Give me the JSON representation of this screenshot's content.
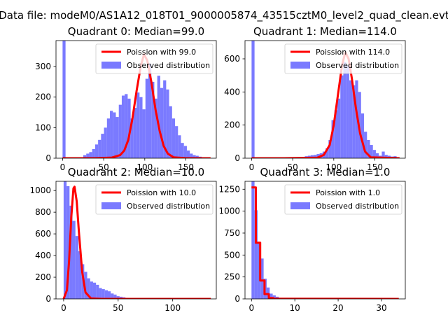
{
  "suptitle": "Data file: modeM0/AS1A12_018T01_9000005874_43515cztM0_level2_quad_clean.evt",
  "colors": {
    "hist": "#7a7aff",
    "poisson": "#ff0000"
  },
  "chart_data": [
    {
      "type": "bar+line",
      "title": "Quadrant 0: Median=99.0",
      "xlim": [
        -8,
        187
      ],
      "ylim": [
        0,
        385
      ],
      "xticks": [
        0,
        50,
        100,
        150
      ],
      "yticks": [
        0,
        100,
        200,
        300
      ],
      "legend": {
        "position": "top-right",
        "line_label": "Poission with 99.0",
        "hist_label": "Observed distribution"
      },
      "hist": {
        "bin_width": 3.6,
        "edges_start": 0,
        "counts": [
          385,
          0,
          0,
          0,
          0,
          0,
          0,
          10,
          15,
          20,
          30,
          45,
          60,
          80,
          100,
          130,
          155,
          150,
          135,
          175,
          205,
          210,
          195,
          130,
          165,
          215,
          200,
          160,
          260,
          310,
          250,
          195,
          270,
          230,
          255,
          225,
          170,
          130,
          105,
          75,
          50,
          40,
          25,
          15,
          10,
          8,
          5,
          3,
          2,
          1
        ]
      },
      "poisson": {
        "x": [
          0,
          20,
          40,
          60,
          70,
          75,
          80,
          85,
          90,
          95,
          99,
          103,
          108,
          113,
          118,
          123,
          128,
          135,
          150,
          180
        ],
        "y": [
          0,
          0,
          0,
          2,
          10,
          25,
          60,
          130,
          220,
          300,
          340,
          320,
          250,
          160,
          90,
          40,
          15,
          3,
          0,
          0
        ]
      }
    },
    {
      "type": "bar+line",
      "title": "Quadrant 1: Median=114.0",
      "xlim": [
        -8,
        187
      ],
      "ylim": [
        0,
        710
      ],
      "xticks": [
        0,
        50,
        100,
        150
      ],
      "yticks": [
        0,
        200,
        400,
        600
      ],
      "legend": {
        "position": "top-right",
        "line_label": "Poission with 114.0",
        "hist_label": "Observed distribution"
      },
      "hist": {
        "bin_width": 3.6,
        "edges_start": 0,
        "counts": [
          710,
          0,
          0,
          0,
          0,
          0,
          0,
          0,
          0,
          0,
          0,
          0,
          0,
          0,
          0,
          0,
          0,
          8,
          12,
          15,
          18,
          20,
          25,
          30,
          40,
          60,
          110,
          230,
          290,
          360,
          500,
          580,
          560,
          470,
          440,
          470,
          400,
          270,
          160,
          110,
          80,
          50,
          30,
          15,
          40,
          20,
          15,
          10,
          12,
          0
        ]
      },
      "poisson": {
        "x": [
          0,
          40,
          80,
          88,
          95,
          100,
          105,
          110,
          114,
          118,
          122,
          127,
          132,
          138,
          145,
          180
        ],
        "y": [
          0,
          0,
          3,
          20,
          80,
          200,
          380,
          560,
          640,
          600,
          480,
          300,
          150,
          40,
          5,
          0
        ]
      }
    },
    {
      "type": "bar+line",
      "title": "Quadrant 2: Median=10.0",
      "xlim": [
        -7,
        140
      ],
      "ylim": [
        0,
        1085
      ],
      "xticks": [
        0,
        50,
        100
      ],
      "yticks": [
        0,
        200,
        400,
        600,
        800,
        1000
      ],
      "legend": {
        "position": "top-right",
        "line_label": "Poission with 10.0",
        "hist_label": "Observed distribution"
      },
      "hist": {
        "bin_width": 2.7,
        "edges_start": 0,
        "counts": [
          1085,
          1040,
          860,
          720,
          580,
          440,
          320,
          250,
          190,
          160,
          150,
          130,
          100,
          90,
          80,
          70,
          50,
          40,
          25,
          20,
          15,
          10,
          8,
          5,
          3,
          2,
          2,
          1,
          1,
          1,
          1,
          0,
          0,
          0,
          0,
          0,
          0,
          0,
          0,
          0,
          0,
          0,
          0,
          0,
          0,
          0,
          0,
          0,
          0,
          0
        ]
      },
      "poisson": {
        "x": [
          0,
          3,
          5,
          7,
          9,
          10,
          12,
          14,
          17,
          20,
          25,
          35,
          135
        ],
        "y": [
          0,
          80,
          350,
          750,
          1020,
          1035,
          900,
          620,
          250,
          60,
          5,
          0,
          0
        ]
      }
    },
    {
      "type": "bar+line",
      "title": "Quadrant 3: Median=1.0",
      "xlim": [
        -1.5,
        35.5
      ],
      "ylim": [
        0,
        1340
      ],
      "xticks": [
        0,
        10,
        20,
        30
      ],
      "yticks": [
        0,
        250,
        500,
        750,
        1000,
        1250
      ],
      "legend": {
        "position": "top-right",
        "line_label": "Poission with 1.0",
        "hist_label": "Observed distribution"
      },
      "hist": {
        "bin_width": 0.7,
        "edges_start": 0,
        "counts": [
          1340,
          1010,
          650,
          460,
          230,
          130,
          60,
          40,
          25,
          12,
          6,
          3,
          2,
          1,
          1,
          0,
          0,
          0,
          0,
          0,
          0,
          0,
          0,
          0,
          0,
          0,
          0,
          0,
          0,
          0,
          0,
          0,
          0,
          0,
          0,
          0,
          0,
          0,
          0,
          0,
          0,
          0,
          0,
          0,
          0,
          0,
          0,
          0,
          0,
          0
        ]
      },
      "poisson": {
        "x": [
          0,
          1,
          1.01,
          2,
          2.01,
          3,
          3.01,
          4,
          4.01,
          5,
          5.01,
          6,
          34
        ],
        "y": [
          1270,
          1270,
          640,
          640,
          210,
          210,
          55,
          55,
          10,
          10,
          2,
          2,
          0
        ]
      }
    }
  ]
}
